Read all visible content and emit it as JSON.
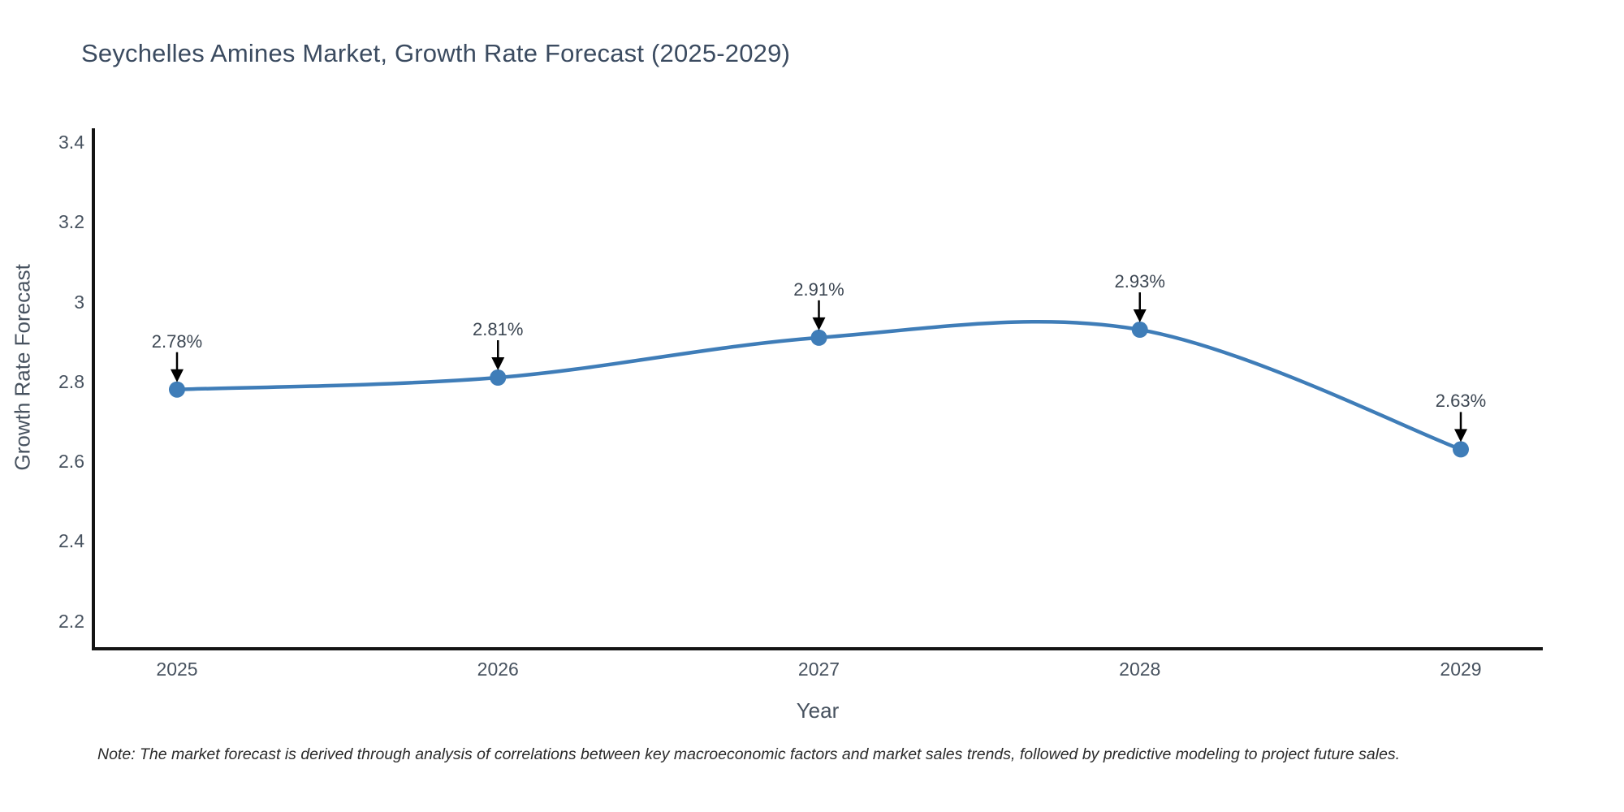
{
  "chart": {
    "title": "Seychelles Amines Market, Growth Rate Forecast (2025-2029)",
    "xlabel": "Year",
    "ylabel": "Growth Rate Forecast",
    "note": "Note: The market forecast is derived through analysis of correlations between key macroeconomic factors and market sales trends, followed by predictive modeling to project future sales.",
    "colors": {
      "line": "#3f7db8",
      "marker": "#3f7db8",
      "axis": "#141414",
      "arrow": "#000000",
      "title_text": "#3b4b60",
      "tick_text": "#47525f",
      "annotation_text": "#3d4753",
      "note_text": "#2b2b2b",
      "background": "#ffffff"
    }
  },
  "chart_data": {
    "type": "line",
    "line_shape": "spline",
    "title": "Seychelles Amines Market, Growth Rate Forecast (2025-2029)",
    "xlabel": "Year",
    "ylabel": "Growth Rate Forecast",
    "x": [
      2025,
      2026,
      2027,
      2028,
      2029
    ],
    "x_tick_labels": [
      "2025",
      "2026",
      "2027",
      "2028",
      "2029"
    ],
    "series": [
      {
        "name": "Growth Rate Forecast",
        "values": [
          2.78,
          2.81,
          2.91,
          2.93,
          2.63
        ]
      }
    ],
    "point_labels": [
      "2.78%",
      "2.81%",
      "2.91%",
      "2.93%",
      "2.63%"
    ],
    "y_ticks": [
      2.2,
      2.4,
      2.6,
      2.8,
      3,
      3.2,
      3.4
    ],
    "y_tick_labels": [
      "2.2",
      "2.4",
      "2.6",
      "2.8",
      "3",
      "3.2",
      "3.4"
    ],
    "ylim": [
      2.13,
      3.435
    ],
    "xlim_years": [
      2024.74,
      2029.26
    ],
    "grid": false,
    "legend": false,
    "annotations": "each data point labeled with percent value above a downward black arrow",
    "footnote": "Note: The market forecast is derived through analysis of correlations between key macroeconomic factors and market sales trends, followed by predictive modeling to project future sales."
  }
}
